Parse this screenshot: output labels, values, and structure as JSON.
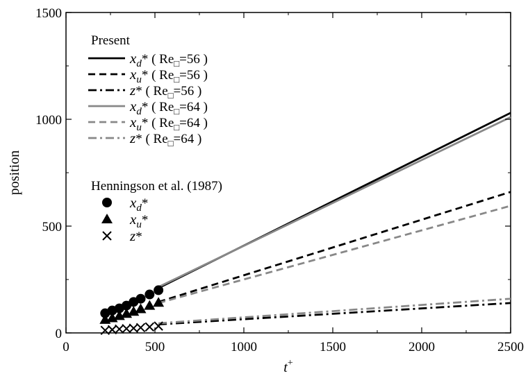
{
  "chart_data": {
    "type": "line",
    "title": "",
    "xlabel": "t",
    "xlabel_sup": "+",
    "ylabel": "position",
    "xlim": [
      0,
      2500
    ],
    "ylim": [
      0,
      1500
    ],
    "x_ticks": [
      0,
      500,
      1000,
      1500,
      2000,
      2500
    ],
    "y_ticks": [
      0,
      500,
      1000,
      1500
    ],
    "grid": false,
    "legend_position": "top-left",
    "legend_groups": [
      {
        "title": "Present"
      },
      {
        "title": "Henningson et al. (1987)"
      }
    ],
    "series": [
      {
        "group": 0,
        "var": "x",
        "sub": "d",
        "suffix": "* ( Re",
        "re_sub": "□",
        "re_val": "=56 )",
        "style": "solid",
        "color": "#000000",
        "marker": "none",
        "x": [
          520,
          2500
        ],
        "y": [
          210,
          1030
        ]
      },
      {
        "group": 0,
        "var": "x",
        "sub": "u",
        "suffix": "* ( Re",
        "re_sub": "□",
        "re_val": "=56 )",
        "style": "dashed",
        "color": "#000000",
        "marker": "none",
        "x": [
          520,
          2500
        ],
        "y": [
          145,
          660
        ]
      },
      {
        "group": 0,
        "var": "z",
        "sub": "",
        "suffix": "* ( Re",
        "re_sub": "□",
        "re_val": "=56 )",
        "style": "dashdot",
        "color": "#000000",
        "marker": "none",
        "x": [
          520,
          2500
        ],
        "y": [
          40,
          140
        ]
      },
      {
        "group": 0,
        "var": "x",
        "sub": "d",
        "suffix": "* ( Re",
        "re_sub": "□",
        "re_val": "=64 )",
        "style": "solid",
        "color": "#888888",
        "marker": "none",
        "x": [
          520,
          2500
        ],
        "y": [
          215,
          1010
        ]
      },
      {
        "group": 0,
        "var": "x",
        "sub": "u",
        "suffix": "* ( Re",
        "re_sub": "□",
        "re_val": "=64 )",
        "style": "dashed",
        "color": "#888888",
        "marker": "none",
        "x": [
          520,
          2500
        ],
        "y": [
          140,
          595
        ]
      },
      {
        "group": 0,
        "var": "z",
        "sub": "",
        "suffix": "* ( Re",
        "re_sub": "□",
        "re_val": "=64 )",
        "style": "dashdot",
        "color": "#888888",
        "marker": "none",
        "x": [
          520,
          2500
        ],
        "y": [
          45,
          160
        ]
      },
      {
        "group": 1,
        "var": "x",
        "sub": "d",
        "suffix": "*",
        "re_sub": "",
        "re_val": "",
        "style": "none",
        "color": "#000000",
        "marker": "circle",
        "x": [
          220,
          260,
          300,
          340,
          380,
          420,
          470,
          520
        ],
        "y": [
          92,
          105,
          115,
          128,
          145,
          160,
          180,
          200
        ]
      },
      {
        "group": 1,
        "var": "x",
        "sub": "u",
        "suffix": "*",
        "re_sub": "",
        "re_val": "",
        "style": "none",
        "color": "#000000",
        "marker": "triangle",
        "x": [
          220,
          260,
          300,
          340,
          380,
          420,
          470,
          520
        ],
        "y": [
          62,
          70,
          80,
          90,
          100,
          112,
          128,
          142
        ]
      },
      {
        "group": 1,
        "var": "z",
        "sub": "",
        "suffix": "*",
        "re_sub": "",
        "re_val": "",
        "style": "none",
        "color": "#000000",
        "marker": "cross",
        "x": [
          220,
          260,
          300,
          340,
          380,
          420,
          470,
          520
        ],
        "y": [
          12,
          15,
          18,
          20,
          22,
          25,
          28,
          32
        ]
      }
    ]
  }
}
